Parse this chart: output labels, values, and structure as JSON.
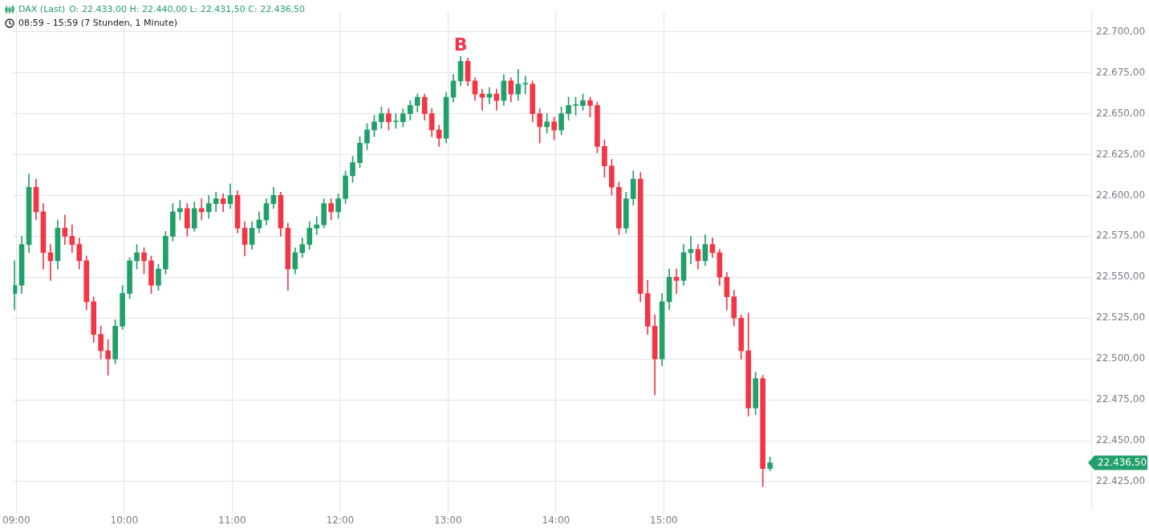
{
  "chart_data": {
    "type": "candlestick",
    "title": "DAX (Last)",
    "subtitle": "O: 22.433,00  H: 22.440,00  L: 22.431,50  C: 22.436,50",
    "annotations": [
      "08:59 - 15:59  (7 Stunden, 1 Minute)",
      {
        "text": "B",
        "x": 13.1167,
        "y": 22685
      },
      "22.436,50"
    ],
    "x": [
      8.9833,
      9.05,
      9.1167,
      9.1833,
      9.25,
      9.3167,
      9.3833,
      9.45,
      9.5167,
      9.5833,
      9.65,
      9.7167,
      9.7833,
      9.85,
      9.9167,
      9.9833,
      10.05,
      10.1167,
      10.1833,
      10.25,
      10.3167,
      10.3833,
      10.45,
      10.5167,
      10.5833,
      10.65,
      10.7167,
      10.7833,
      10.85,
      10.9167,
      10.9833,
      11.05,
      11.1167,
      11.1833,
      11.25,
      11.3167,
      11.3833,
      11.45,
      11.5167,
      11.5833,
      11.65,
      11.7167,
      11.7833,
      11.85,
      11.9167,
      11.9833,
      12.05,
      12.1167,
      12.1833,
      12.25,
      12.3167,
      12.3833,
      12.45,
      12.5167,
      12.5833,
      12.65,
      12.7167,
      12.7833,
      12.85,
      12.9167,
      12.9833,
      13.05,
      13.1167,
      13.1833,
      13.25,
      13.3167,
      13.3833,
      13.45,
      13.5167,
      13.5833,
      13.65,
      13.7167,
      13.7833,
      13.85,
      13.9167,
      13.9833,
      14.05,
      14.1167,
      14.1833,
      14.25,
      14.3167,
      14.3833,
      14.45,
      14.5167,
      14.5833,
      14.65,
      14.7167,
      14.7833,
      14.85,
      14.9167,
      14.9833,
      15.05,
      15.1167,
      15.1833,
      15.25,
      15.3167,
      15.3833,
      15.45,
      15.5167,
      15.5833,
      15.65,
      15.7167,
      15.7833,
      15.85,
      15.9167,
      15.9833
    ],
    "ohlc": [
      [
        22540,
        22560,
        22530,
        22545
      ],
      [
        22545,
        22575,
        22540,
        22570
      ],
      [
        22570,
        22613,
        22565,
        22605
      ],
      [
        22605,
        22610,
        22585,
        22590
      ],
      [
        22590,
        22595,
        22555,
        22565
      ],
      [
        22565,
        22570,
        22548,
        22560
      ],
      [
        22560,
        22585,
        22555,
        22580
      ],
      [
        22580,
        22588,
        22570,
        22575
      ],
      [
        22575,
        22582,
        22565,
        22570
      ],
      [
        22570,
        22574,
        22555,
        22560
      ],
      [
        22560,
        22563,
        22530,
        22535
      ],
      [
        22535,
        22538,
        22510,
        22515
      ],
      [
        22515,
        22520,
        22500,
        22505
      ],
      [
        22505,
        22512,
        22490,
        22500
      ],
      [
        22500,
        22524,
        22497,
        22520
      ],
      [
        22520,
        22545,
        22518,
        22540
      ],
      [
        22540,
        22562,
        22537,
        22560
      ],
      [
        22560,
        22570,
        22555,
        22565
      ],
      [
        22565,
        22568,
        22552,
        22560
      ],
      [
        22560,
        22563,
        22540,
        22545
      ],
      [
        22545,
        22558,
        22542,
        22555
      ],
      [
        22555,
        22578,
        22552,
        22575
      ],
      [
        22575,
        22595,
        22572,
        22590
      ],
      [
        22590,
        22597,
        22585,
        22592
      ],
      [
        22592,
        22595,
        22575,
        22580
      ],
      [
        22580,
        22596,
        22578,
        22592
      ],
      [
        22592,
        22598,
        22585,
        22590
      ],
      [
        22590,
        22600,
        22586,
        22595
      ],
      [
        22595,
        22602,
        22590,
        22598
      ],
      [
        22598,
        22601,
        22590,
        22595
      ],
      [
        22595,
        22607,
        22592,
        22600
      ],
      [
        22600,
        22603,
        22577,
        22580
      ],
      [
        22580,
        22584,
        22563,
        22570
      ],
      [
        22570,
        22584,
        22567,
        22580
      ],
      [
        22580,
        22590,
        22577,
        22585
      ],
      [
        22585,
        22598,
        22582,
        22595
      ],
      [
        22595,
        22605,
        22592,
        22600
      ],
      [
        22600,
        22602,
        22575,
        22580
      ],
      [
        22580,
        22583,
        22542,
        22555
      ],
      [
        22555,
        22568,
        22552,
        22565
      ],
      [
        22565,
        22574,
        22562,
        22570
      ],
      [
        22570,
        22584,
        22567,
        22580
      ],
      [
        22580,
        22587,
        22576,
        22582
      ],
      [
        22582,
        22598,
        22580,
        22595
      ],
      [
        22595,
        22598,
        22585,
        22590
      ],
      [
        22590,
        22601,
        22586,
        22598
      ],
      [
        22598,
        22615,
        22595,
        22612
      ],
      [
        22612,
        22624,
        22608,
        22620
      ],
      [
        22620,
        22636,
        22617,
        22632
      ],
      [
        22632,
        22644,
        22628,
        22640
      ],
      [
        22640,
        22649,
        22636,
        22645
      ],
      [
        22645,
        22654,
        22641,
        22650
      ],
      [
        22650,
        22653,
        22640,
        22645
      ],
      [
        22645,
        22650,
        22641,
        22645
      ],
      [
        22645,
        22653,
        22642,
        22650
      ],
      [
        22650,
        22658,
        22646,
        22655
      ],
      [
        22655,
        22662,
        22651,
        22660
      ],
      [
        22660,
        22662,
        22646,
        22650
      ],
      [
        22650,
        22653,
        22636,
        22640
      ],
      [
        22640,
        22643,
        22630,
        22635
      ],
      [
        22635,
        22663,
        22632,
        22660
      ],
      [
        22660,
        22674,
        22657,
        22670
      ],
      [
        22670,
        22685,
        22667,
        22682
      ],
      [
        22682,
        22684,
        22667,
        22670
      ],
      [
        22670,
        22672,
        22658,
        22662
      ],
      [
        22662,
        22665,
        22652,
        22660
      ],
      [
        22660,
        22666,
        22656,
        22662
      ],
      [
        22662,
        22665,
        22652,
        22658
      ],
      [
        22658,
        22674,
        22655,
        22670
      ],
      [
        22670,
        22672,
        22657,
        22662
      ],
      [
        22662,
        22677,
        22658,
        22668
      ],
      [
        22668,
        22673,
        22662,
        22668
      ],
      [
        22668,
        22670,
        22645,
        22650
      ],
      [
        22650,
        22653,
        22632,
        22642
      ],
      [
        22642,
        22650,
        22638,
        22645
      ],
      [
        22645,
        22648,
        22634,
        22640
      ],
      [
        22640,
        22654,
        22637,
        22650
      ],
      [
        22650,
        22660,
        22646,
        22655
      ],
      [
        22655,
        22660,
        22649,
        22655
      ],
      [
        22655,
        22662,
        22652,
        22658
      ],
      [
        22658,
        22660,
        22648,
        22655
      ],
      [
        22655,
        22657,
        22626,
        22630
      ],
      [
        22630,
        22634,
        22611,
        22618
      ],
      [
        22618,
        22622,
        22600,
        22605
      ],
      [
        22605,
        22608,
        22576,
        22580
      ],
      [
        22580,
        22602,
        22577,
        22598
      ],
      [
        22598,
        22615,
        22594,
        22610
      ],
      [
        22610,
        22614,
        22535,
        22540
      ],
      [
        22540,
        22548,
        22515,
        22520
      ],
      [
        22520,
        22527,
        22478,
        22500
      ],
      [
        22500,
        22540,
        22496,
        22535
      ],
      [
        22535,
        22555,
        22530,
        22550
      ],
      [
        22550,
        22555,
        22540,
        22548
      ],
      [
        22548,
        22570,
        22545,
        22565
      ],
      [
        22565,
        22575,
        22558,
        22567
      ],
      [
        22567,
        22570,
        22555,
        22560
      ],
      [
        22560,
        22576,
        22557,
        22570
      ],
      [
        22570,
        22574,
        22562,
        22565
      ],
      [
        22565,
        22567,
        22545,
        22550
      ],
      [
        22550,
        22553,
        22530,
        22538
      ],
      [
        22538,
        22542,
        22520,
        22525
      ],
      [
        22525,
        22527,
        22500,
        22505
      ],
      [
        22505,
        22528,
        22465,
        22470
      ],
      [
        22470,
        22492,
        22466,
        22488
      ],
      [
        22488,
        22490,
        22422,
        22433
      ],
      [
        22433,
        22440,
        22431.5,
        22436.5
      ]
    ],
    "colors": [
      "#22a06b",
      "#22a06b",
      "#22a06b",
      "#f23645",
      "#f23645",
      "#f23645",
      "#22a06b",
      "#f23645",
      "#f23645",
      "#f23645",
      "#f23645",
      "#f23645",
      "#f23645",
      "#f23645",
      "#22a06b",
      "#22a06b",
      "#22a06b",
      "#22a06b",
      "#f23645",
      "#f23645",
      "#22a06b",
      "#22a06b",
      "#22a06b",
      "#22a06b",
      "#f23645",
      "#22a06b",
      "#f23645",
      "#22a06b",
      "#22a06b",
      "#f23645",
      "#22a06b",
      "#f23645",
      "#f23645",
      "#22a06b",
      "#22a06b",
      "#22a06b",
      "#22a06b",
      "#f23645",
      "#f23645",
      "#22a06b",
      "#22a06b",
      "#22a06b",
      "#22a06b",
      "#22a06b",
      "#f23645",
      "#22a06b",
      "#22a06b",
      "#22a06b",
      "#22a06b",
      "#22a06b",
      "#22a06b",
      "#22a06b",
      "#f23645",
      "#22a06b",
      "#22a06b",
      "#22a06b",
      "#22a06b",
      "#f23645",
      "#f23645",
      "#f23645",
      "#22a06b",
      "#22a06b",
      "#22a06b",
      "#f23645",
      "#f23645",
      "#f23645",
      "#22a06b",
      "#f23645",
      "#22a06b",
      "#f23645",
      "#22a06b",
      "#22a06b",
      "#f23645",
      "#f23645",
      "#22a06b",
      "#f23645",
      "#22a06b",
      "#22a06b",
      "#22a06b",
      "#22a06b",
      "#f23645",
      "#f23645",
      "#f23645",
      "#f23645",
      "#f23645",
      "#22a06b",
      "#22a06b",
      "#f23645",
      "#f23645",
      "#f23645",
      "#22a06b",
      "#22a06b",
      "#f23645",
      "#22a06b",
      "#22a06b",
      "#f23645",
      "#22a06b",
      "#f23645",
      "#f23645",
      "#f23645",
      "#f23645",
      "#f23645",
      "#f23645",
      "#22a06b",
      "#f23645",
      "#22a06b"
    ],
    "xlim": [
      8.97,
      18.96
    ],
    "xticks": [
      {
        "value": 9,
        "label": "09:00"
      },
      {
        "value": 10,
        "label": "10:00"
      },
      {
        "value": 11,
        "label": "11:00"
      },
      {
        "value": 12,
        "label": "12:00"
      },
      {
        "value": 13,
        "label": "13:00"
      },
      {
        "value": 14,
        "label": "14:00"
      },
      {
        "value": 15,
        "label": "15:00"
      }
    ],
    "ylim": [
      22408,
      22713
    ],
    "yticks": [
      {
        "value": 22425,
        "label": "22.425,00"
      },
      {
        "value": 22450,
        "label": "22.450,00"
      },
      {
        "value": 22475,
        "label": "22.475,00"
      },
      {
        "value": 22500,
        "label": "22.500,00"
      },
      {
        "value": 22525,
        "label": "22.525,00"
      },
      {
        "value": 22550,
        "label": "22.550,00"
      },
      {
        "value": 22575,
        "label": "22.575,00"
      },
      {
        "value": 22600,
        "label": "22.600,00"
      },
      {
        "value": 22625,
        "label": "22.625,00"
      },
      {
        "value": 22650,
        "label": "22.650,00"
      },
      {
        "value": 22675,
        "label": "22.675,00"
      },
      {
        "value": 22700,
        "label": "22.700,00"
      }
    ],
    "grid": true,
    "legend": false
  }
}
